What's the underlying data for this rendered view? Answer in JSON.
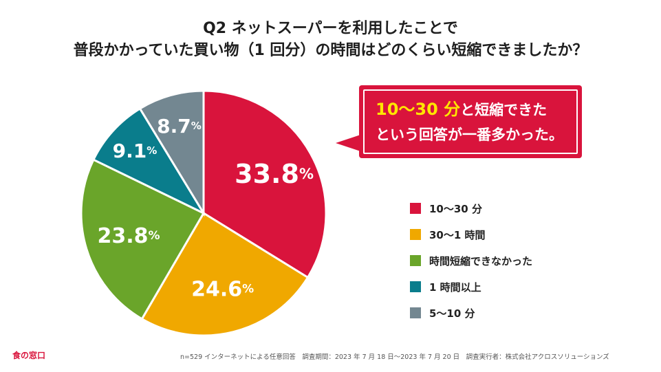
{
  "title": {
    "line1": "Q2 ネットスーパーを利用したことで",
    "line2": "普段かかっていた買い物（1 回分）の時間はどのくらい短縮できましたか？"
  },
  "chart_data": {
    "type": "pie",
    "title": "普段かかっていた買い物（1 回分）の時間はどのくらい短縮できましたか？",
    "categories": [
      "10〜30 分",
      "30〜1 時間",
      "時間短縮できなかった",
      "1 時間以上",
      "5〜10 分"
    ],
    "values": [
      33.8,
      24.6,
      23.8,
      9.1,
      8.7
    ],
    "value_labels": [
      "33.8",
      "24.6",
      "23.8",
      "9.1",
      "8.7"
    ],
    "unit": "%",
    "colors": [
      "#d9143c",
      "#f0a800",
      "#6aa52a",
      "#0a7d8c",
      "#738791"
    ],
    "start": "12 o'clock, clockwise",
    "legend_position": "right"
  },
  "callout": {
    "highlight": "10〜30 分",
    "line1_rest": "と短縮できた",
    "line2": "という回答が一番多かった。"
  },
  "brand": "食の窓口",
  "footnote": "n=529 インターネットによる任意回答　調査期間：2023 年 7 月 18 日〜2023 年 7 月 20 日　調査実行者：株式会社アクロスソリューションズ"
}
